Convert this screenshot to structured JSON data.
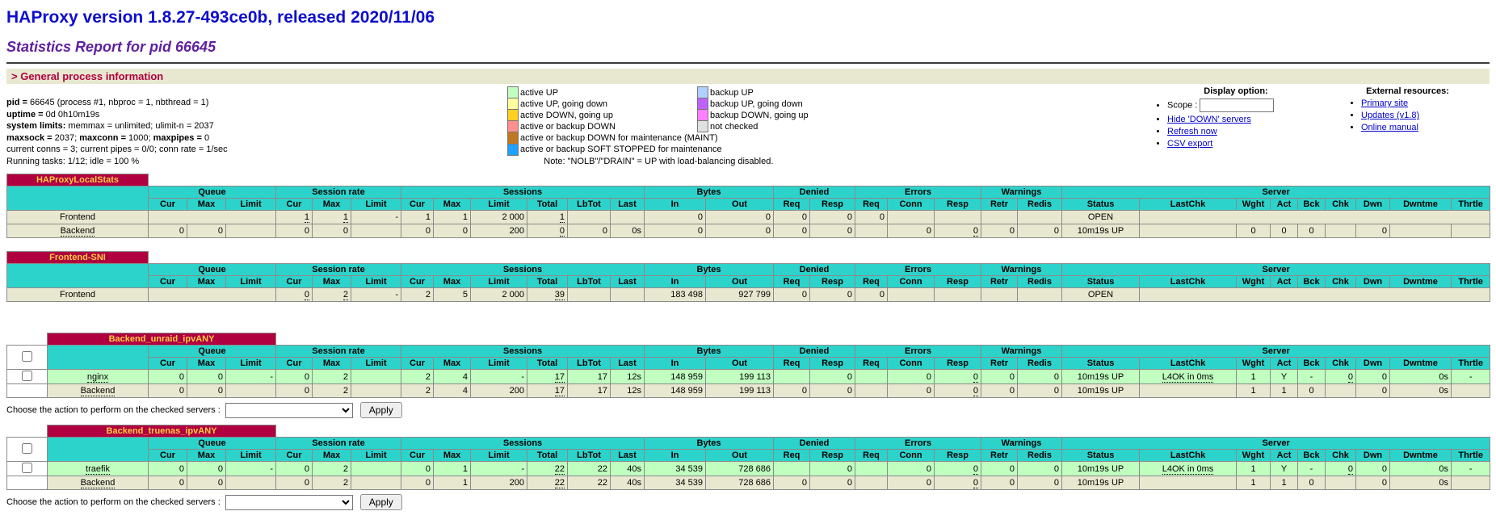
{
  "header": {
    "title": "HAProxy version 1.8.27-493ce0b, released 2020/11/06",
    "subtitle": "Statistics Report for pid 66645",
    "section_title": "> General process information"
  },
  "process_info": {
    "lines": [
      [
        {
          "b": "pid = "
        },
        {
          "t": "66645 (process #1, nbproc = 1, nbthread = 1)"
        }
      ],
      [
        {
          "b": "uptime = "
        },
        {
          "t": "0d 0h10m19s"
        }
      ],
      [
        {
          "b": "system limits:"
        },
        {
          "t": " memmax = unlimited; ulimit-n = 2037"
        }
      ],
      [
        {
          "b": "maxsock = "
        },
        {
          "t": "2037; "
        },
        {
          "b": "maxconn = "
        },
        {
          "t": "1000; "
        },
        {
          "b": "maxpipes = "
        },
        {
          "t": "0"
        }
      ],
      [
        {
          "t": "current conns = 3; current pipes = 0/0; conn rate = 1/sec"
        }
      ],
      [
        {
          "t": "Running tasks: 1/12; idle = 100 %"
        }
      ]
    ]
  },
  "legend": {
    "rows": [
      [
        {
          "color": "#c0ffc0",
          "label": "active UP"
        },
        {
          "color": "#b0d0ff",
          "label": "backup UP"
        }
      ],
      [
        {
          "color": "#ffffa0",
          "label": "active UP, going down"
        },
        {
          "color": "#c060ff",
          "label": "backup UP, going down"
        }
      ],
      [
        {
          "color": "#ffd020",
          "label": "active DOWN, going up"
        },
        {
          "color": "#ff80ff",
          "label": "backup DOWN, going up"
        }
      ],
      [
        {
          "color": "#ff9090",
          "label": "active or backup DOWN"
        },
        {
          "color": "#e0e0e0",
          "label": "not checked"
        }
      ],
      [
        {
          "color": "#c07820",
          "label": "active or backup DOWN for maintenance (MAINT)",
          "span": true
        }
      ],
      [
        {
          "color": "#20a0ff",
          "label": "active or backup SOFT STOPPED for maintenance",
          "span": true
        }
      ]
    ],
    "note": "Note: \"NOLB\"/\"DRAIN\" = UP with load-balancing disabled."
  },
  "display_options": {
    "title": "Display option:",
    "scope_label": "Scope :",
    "scope_value": "",
    "links": [
      "Hide 'DOWN' servers",
      "Refresh now",
      "CSV export"
    ]
  },
  "external_resources": {
    "title": "External resources:",
    "links": [
      "Primary site",
      "Updates (v1.8)",
      "Online manual"
    ]
  },
  "table_columns": {
    "groups": [
      {
        "label": "Queue",
        "cols": [
          "Cur",
          "Max",
          "Limit"
        ]
      },
      {
        "label": "Session rate",
        "cols": [
          "Cur",
          "Max",
          "Limit"
        ]
      },
      {
        "label": "Sessions",
        "cols": [
          "Cur",
          "Max",
          "Limit",
          "Total",
          "LbTot",
          "Last"
        ]
      },
      {
        "label": "Bytes",
        "cols": [
          "In",
          "Out"
        ]
      },
      {
        "label": "Denied",
        "cols": [
          "Req",
          "Resp"
        ]
      },
      {
        "label": "Errors",
        "cols": [
          "Req",
          "Conn",
          "Resp"
        ]
      },
      {
        "label": "Warnings",
        "cols": [
          "Retr",
          "Redis"
        ]
      },
      {
        "label": "Server",
        "cols": [
          "Status",
          "LastChk",
          "Wght",
          "Act",
          "Bck",
          "Chk",
          "Dwn",
          "Dwntme",
          "Thrtle"
        ]
      }
    ]
  },
  "action_bar": {
    "label": "Choose the action to perform on the checked servers :",
    "apply_label": "Apply"
  },
  "tables": [
    {
      "title": "HAProxyLocalStats",
      "checkbox": false,
      "action": false,
      "rows": [
        {
          "name": "Frontend",
          "cls": "frontend",
          "name_u": false,
          "cells": [
            {
              "cs": 3
            },
            {
              "v": "1",
              "u": 1
            },
            {
              "v": "1",
              "u": 1
            },
            {
              "v": "-"
            },
            {
              "v": "1"
            },
            {
              "v": "1"
            },
            {
              "v": "2 000"
            },
            {
              "v": "1",
              "u": 1
            },
            {
              "v": ""
            },
            {
              "v": ""
            },
            {
              "v": "0"
            },
            {
              "v": "0"
            },
            {
              "v": "0"
            },
            {
              "v": "0"
            },
            {
              "v": "0"
            },
            {
              "v": ""
            },
            {
              "v": ""
            },
            {
              "v": ""
            },
            {
              "v": ""
            },
            {
              "v": "OPEN",
              "ac": 1
            },
            {
              "cs": 8
            }
          ]
        },
        {
          "name": "Backend",
          "cls": "backend",
          "name_u": true,
          "cells": [
            {
              "v": "0"
            },
            {
              "v": "0"
            },
            {
              "v": ""
            },
            {
              "v": "0"
            },
            {
              "v": "0"
            },
            {
              "v": ""
            },
            {
              "v": "0"
            },
            {
              "v": "0"
            },
            {
              "v": "200"
            },
            {
              "v": "0",
              "u": 1
            },
            {
              "v": "0"
            },
            {
              "v": "0s"
            },
            {
              "v": "0"
            },
            {
              "v": "0"
            },
            {
              "v": "0"
            },
            {
              "v": "0"
            },
            {
              "v": ""
            },
            {
              "v": "0"
            },
            {
              "v": "0",
              "u": 1
            },
            {
              "v": "0"
            },
            {
              "v": "0"
            },
            {
              "v": "10m19s UP",
              "ac": 1
            },
            {
              "v": ""
            },
            {
              "v": "0",
              "ac": 1
            },
            {
              "v": "0",
              "ac": 1
            },
            {
              "v": "0",
              "ac": 1
            },
            {
              "v": ""
            },
            {
              "v": "0"
            },
            {
              "v": ""
            },
            {
              "v": ""
            }
          ]
        }
      ]
    },
    {
      "title": "Frontend-SNI",
      "checkbox": false,
      "action": false,
      "rows": [
        {
          "name": "Frontend",
          "cls": "frontend",
          "name_u": false,
          "cells": [
            {
              "cs": 3
            },
            {
              "v": "0",
              "u": 1
            },
            {
              "v": "2",
              "u": 1
            },
            {
              "v": "-"
            },
            {
              "v": "2"
            },
            {
              "v": "5"
            },
            {
              "v": "2 000"
            },
            {
              "v": "39",
              "u": 1
            },
            {
              "v": ""
            },
            {
              "v": ""
            },
            {
              "v": "183 498"
            },
            {
              "v": "927 799"
            },
            {
              "v": "0"
            },
            {
              "v": "0"
            },
            {
              "v": "0"
            },
            {
              "v": ""
            },
            {
              "v": ""
            },
            {
              "v": ""
            },
            {
              "v": ""
            },
            {
              "v": "OPEN",
              "ac": 1
            },
            {
              "cs": 8
            }
          ]
        }
      ]
    },
    {
      "title": "Backend_unraid_ipvANY",
      "checkbox": true,
      "action": true,
      "rows": [
        {
          "name": "nginx",
          "cls": "active_up",
          "name_u": true,
          "checkbox": true,
          "cells": [
            {
              "v": "0"
            },
            {
              "v": "0"
            },
            {
              "v": "-"
            },
            {
              "v": "0"
            },
            {
              "v": "2"
            },
            {
              "v": ""
            },
            {
              "v": "2"
            },
            {
              "v": "4"
            },
            {
              "v": "-"
            },
            {
              "v": "17",
              "u": 1
            },
            {
              "v": "17"
            },
            {
              "v": "12s"
            },
            {
              "v": "148 959"
            },
            {
              "v": "199 113"
            },
            {
              "v": ""
            },
            {
              "v": "0"
            },
            {
              "v": ""
            },
            {
              "v": "0"
            },
            {
              "v": "0",
              "u": 1
            },
            {
              "v": "0"
            },
            {
              "v": "0"
            },
            {
              "v": "10m19s UP",
              "ac": 1
            },
            {
              "v": "L4OK in 0ms",
              "ac": 1,
              "u": 1
            },
            {
              "v": "1",
              "ac": 1
            },
            {
              "v": "Y",
              "ac": 1
            },
            {
              "v": "-",
              "ac": 1
            },
            {
              "v": "0",
              "u": 1
            },
            {
              "v": "0"
            },
            {
              "v": "0s"
            },
            {
              "v": "-",
              "ac": 1
            }
          ]
        },
        {
          "name": "Backend",
          "cls": "backend",
          "name_u": true,
          "checkbox": false,
          "cells": [
            {
              "v": "0"
            },
            {
              "v": "0"
            },
            {
              "v": ""
            },
            {
              "v": "0"
            },
            {
              "v": "2"
            },
            {
              "v": ""
            },
            {
              "v": "2"
            },
            {
              "v": "4"
            },
            {
              "v": "200"
            },
            {
              "v": "17",
              "u": 1
            },
            {
              "v": "17"
            },
            {
              "v": "12s"
            },
            {
              "v": "148 959"
            },
            {
              "v": "199 113"
            },
            {
              "v": "0"
            },
            {
              "v": "0"
            },
            {
              "v": ""
            },
            {
              "v": "0"
            },
            {
              "v": "0",
              "u": 1
            },
            {
              "v": "0"
            },
            {
              "v": "0"
            },
            {
              "v": "10m19s UP",
              "ac": 1
            },
            {
              "v": ""
            },
            {
              "v": "1",
              "ac": 1
            },
            {
              "v": "1",
              "ac": 1
            },
            {
              "v": "0",
              "ac": 1
            },
            {
              "v": ""
            },
            {
              "v": "0"
            },
            {
              "v": "0s"
            },
            {
              "v": ""
            }
          ]
        }
      ]
    },
    {
      "title": "Backend_truenas_ipvANY",
      "checkbox": true,
      "action": true,
      "rows": [
        {
          "name": "traefik",
          "cls": "active_up",
          "name_u": true,
          "checkbox": true,
          "cells": [
            {
              "v": "0"
            },
            {
              "v": "0"
            },
            {
              "v": "-"
            },
            {
              "v": "0"
            },
            {
              "v": "2"
            },
            {
              "v": ""
            },
            {
              "v": "0"
            },
            {
              "v": "1"
            },
            {
              "v": "-"
            },
            {
              "v": "22",
              "u": 1
            },
            {
              "v": "22"
            },
            {
              "v": "40s"
            },
            {
              "v": "34 539"
            },
            {
              "v": "728 686"
            },
            {
              "v": ""
            },
            {
              "v": "0"
            },
            {
              "v": ""
            },
            {
              "v": "0"
            },
            {
              "v": "0",
              "u": 1
            },
            {
              "v": "0"
            },
            {
              "v": "0"
            },
            {
              "v": "10m19s UP",
              "ac": 1
            },
            {
              "v": "L4OK in 0ms",
              "ac": 1,
              "u": 1
            },
            {
              "v": "1",
              "ac": 1
            },
            {
              "v": "Y",
              "ac": 1
            },
            {
              "v": "-",
              "ac": 1
            },
            {
              "v": "0",
              "u": 1
            },
            {
              "v": "0"
            },
            {
              "v": "0s"
            },
            {
              "v": "-",
              "ac": 1
            }
          ]
        },
        {
          "name": "Backend",
          "cls": "backend",
          "name_u": true,
          "checkbox": false,
          "cells": [
            {
              "v": "0"
            },
            {
              "v": "0"
            },
            {
              "v": ""
            },
            {
              "v": "0"
            },
            {
              "v": "2"
            },
            {
              "v": ""
            },
            {
              "v": "0"
            },
            {
              "v": "1"
            },
            {
              "v": "200"
            },
            {
              "v": "22",
              "u": 1
            },
            {
              "v": "22"
            },
            {
              "v": "40s"
            },
            {
              "v": "34 539"
            },
            {
              "v": "728 686"
            },
            {
              "v": "0"
            },
            {
              "v": "0"
            },
            {
              "v": ""
            },
            {
              "v": "0"
            },
            {
              "v": "0",
              "u": 1
            },
            {
              "v": "0"
            },
            {
              "v": "0"
            },
            {
              "v": "10m19s UP",
              "ac": 1
            },
            {
              "v": ""
            },
            {
              "v": "1",
              "ac": 1
            },
            {
              "v": "1",
              "ac": 1
            },
            {
              "v": "0",
              "ac": 1
            },
            {
              "v": ""
            },
            {
              "v": "0"
            },
            {
              "v": "0s"
            },
            {
              "v": ""
            }
          ]
        }
      ]
    }
  ]
}
